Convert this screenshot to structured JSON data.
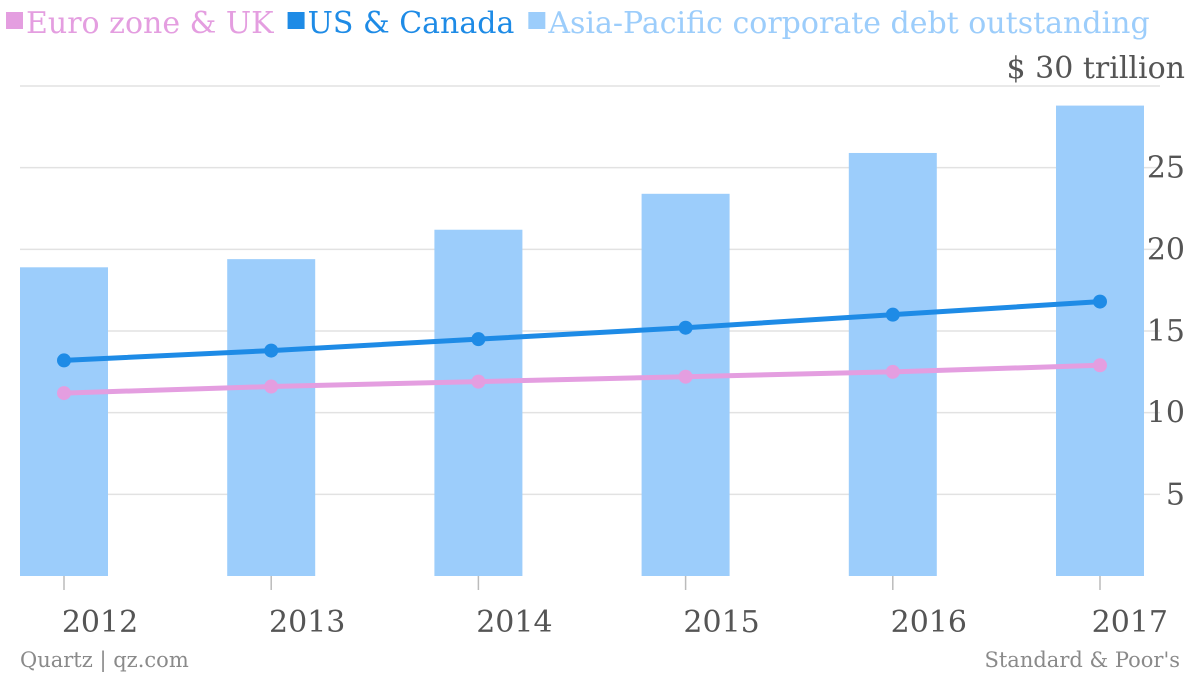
{
  "chart_data": {
    "type": "bar",
    "categories": [
      "2012",
      "2013",
      "2014",
      "2015",
      "2016",
      "2017"
    ],
    "ylim": [
      0,
      30
    ],
    "yticks": [
      5,
      10,
      15,
      20,
      25
    ],
    "top_tick_label": "$ 30 trillion",
    "legend_placement": "top",
    "grid": true,
    "series": [
      {
        "name": "Euro zone & UK",
        "type": "line",
        "color": "#e49ee0",
        "values": [
          11.2,
          11.6,
          11.9,
          12.2,
          12.5,
          12.9
        ]
      },
      {
        "name": "US & Canada",
        "type": "line",
        "color": "#1e8be6",
        "values": [
          13.2,
          13.8,
          14.5,
          15.2,
          16.0,
          16.8
        ]
      },
      {
        "name": "Asia-Pacific corporate debt outstanding",
        "type": "bar",
        "color": "#9ccdfb",
        "values": [
          18.9,
          19.4,
          21.2,
          23.4,
          25.9,
          28.8
        ]
      }
    ],
    "footer_left": "Quartz | qz.com",
    "footer_right": "Standard & Poor's"
  }
}
